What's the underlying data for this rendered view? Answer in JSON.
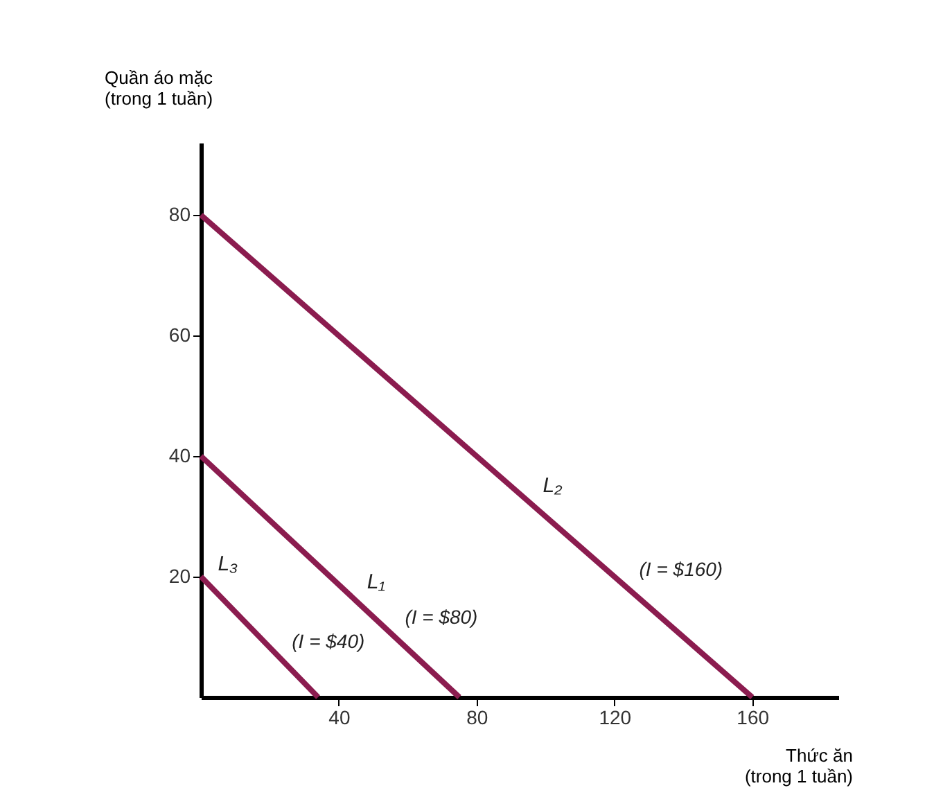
{
  "chart_data": {
    "type": "line",
    "xlabel": "Thức ăn\n(trong 1 tuần)",
    "ylabel": "Quần áo mặc\n(trong 1 tuần)",
    "series": [
      {
        "name": "L₃",
        "color": "#8b1c4f",
        "x": [
          0,
          34
        ],
        "values": [
          20,
          0
        ]
      },
      {
        "name": "L₁",
        "color": "#8b1c4f",
        "x": [
          0,
          75
        ],
        "values": [
          40,
          0
        ]
      },
      {
        "name": "L₂",
        "color": "#8b1c4f",
        "x": [
          0,
          160
        ],
        "values": [
          80,
          0
        ]
      }
    ],
    "annotations": [
      "(I = $40)",
      "(I = $80)",
      "(I = $160)"
    ],
    "xlim": [
      0,
      185
    ],
    "ylim": [
      0,
      92
    ],
    "xticks": [
      40,
      80,
      120,
      160
    ],
    "yticks": [
      20,
      40,
      60,
      80
    ],
    "grid": false,
    "legend": false,
    "marker": "none",
    "line_style": "solid"
  }
}
